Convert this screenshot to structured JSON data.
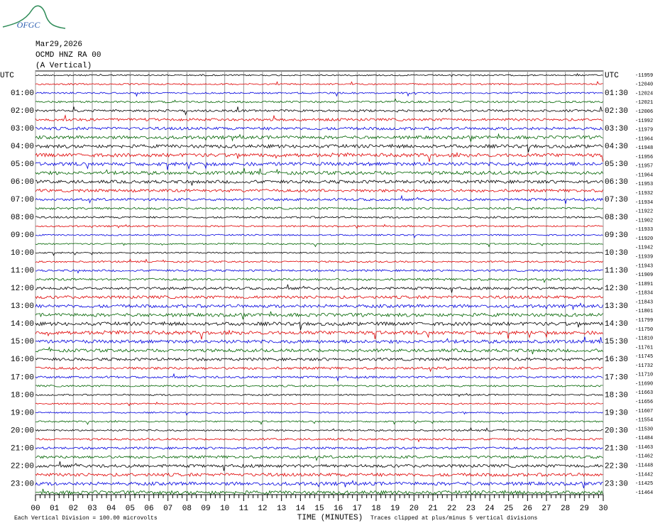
{
  "header": {
    "logo": "OFGC",
    "date": "Mar29,2026",
    "station": "OCMD HNZ RA 00",
    "component": "(A Vertical)"
  },
  "left_labels": [
    "UTC",
    "01:00",
    "02:00",
    "03:00",
    "04:00",
    "05:00",
    "06:00",
    "07:00",
    "08:00",
    "09:00",
    "10:00",
    "11:00",
    "12:00",
    "13:00",
    "14:00",
    "15:00",
    "16:00",
    "17:00",
    "18:00",
    "19:00",
    "20:00",
    "21:00",
    "22:00",
    "23:00"
  ],
  "right_labels": [
    "UTC",
    "01:30",
    "02:30",
    "03:30",
    "04:30",
    "05:30",
    "06:30",
    "07:30",
    "08:30",
    "09:30",
    "10:30",
    "11:30",
    "12:30",
    "13:30",
    "14:30",
    "15:30",
    "16:30",
    "17:30",
    "18:30",
    "19:30",
    "20:30",
    "21:30",
    "22:30",
    "23:30"
  ],
  "offsets": [
    -11959,
    -12040,
    -12024,
    -12021,
    -12006,
    -11992,
    -11979,
    -11964,
    -11948,
    -11956,
    -11957,
    -11964,
    -11953,
    -11932,
    -11934,
    -11922,
    -11902,
    -11933,
    -11920,
    -11942,
    -11939,
    -11943,
    -11909,
    -11891,
    -11834,
    -11843,
    -11801,
    -11799,
    -11750,
    -11810,
    -11761,
    -11745,
    -11732,
    -11710,
    -11690,
    -11663,
    -11656,
    -11607,
    -11554,
    -11530,
    -11484,
    -11463,
    -11462,
    -11448,
    -11442,
    -11425,
    -11464
  ],
  "x_axis": {
    "ticks": [
      "00",
      "01",
      "02",
      "03",
      "04",
      "05",
      "06",
      "07",
      "08",
      "09",
      "10",
      "11",
      "12",
      "13",
      "14",
      "15",
      "16",
      "17",
      "18",
      "19",
      "20",
      "21",
      "22",
      "23",
      "24",
      "25",
      "26",
      "27",
      "28",
      "29",
      "30"
    ],
    "label": "TIME (MINUTES)"
  },
  "footer": {
    "division": "Each Vertical Division =  100.00 microvolts",
    "clipping": "Traces clipped at plus/minus 5 vertical divisions"
  },
  "trace_colors": [
    "#000000",
    "#e00000",
    "#0000e0",
    "#006400"
  ]
}
